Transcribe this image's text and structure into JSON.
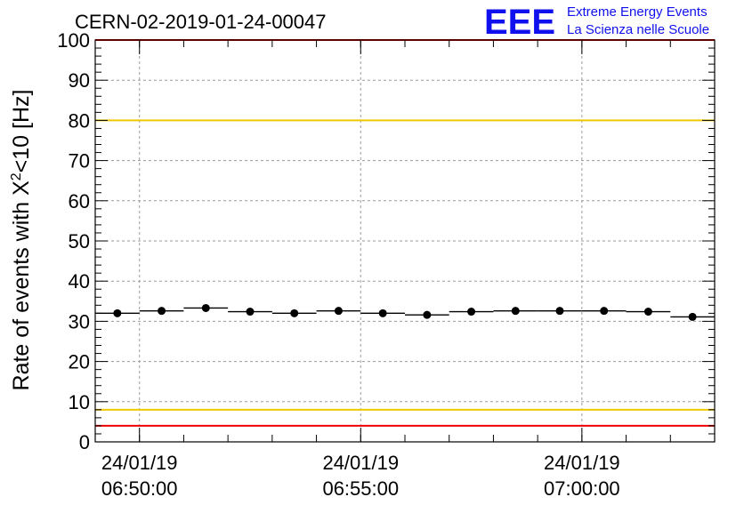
{
  "header": {
    "run_title": "CERN-02-2019-01-24-00047",
    "logo_text": "EEE",
    "logo_line1": "Extreme Energy Events",
    "logo_line2": "La Scienza nelle Scuole"
  },
  "colors": {
    "logo_blue": "#1010ee",
    "red_line": "#ee0000",
    "yellow_line": "#f0c800",
    "marker": "#000000",
    "grid": "#9a9a9a"
  },
  "chart_data": {
    "type": "scatter",
    "title": "CERN-02-2019-01-24-00047",
    "ylabel_prefix": "Rate of events with ",
    "ylabel_symbol": "X",
    "ylabel_sup": "2",
    "ylabel_suffix": "<10 [Hz]",
    "xlabel": "",
    "ylim": [
      0,
      100
    ],
    "xlim": [
      "24/01/19 06:49:00",
      "24/01/19 07:03:00"
    ],
    "yticks": [
      "0",
      "10",
      "20",
      "30",
      "40",
      "50",
      "60",
      "70",
      "80",
      "90",
      "100"
    ],
    "xticks": [
      {
        "date": "24/01/19",
        "time": "06:50:00"
      },
      {
        "date": "24/01/19",
        "time": "06:55:00"
      },
      {
        "date": "24/01/19",
        "time": "07:00:00"
      }
    ],
    "grid": true,
    "bin_width_minutes": 1,
    "points": [
      {
        "x": "06:49:30",
        "y": 32.0
      },
      {
        "x": "06:50:30",
        "y": 32.6
      },
      {
        "x": "06:51:30",
        "y": 33.3
      },
      {
        "x": "06:52:30",
        "y": 32.4
      },
      {
        "x": "06:53:30",
        "y": 32.0
      },
      {
        "x": "06:54:30",
        "y": 32.6
      },
      {
        "x": "06:55:30",
        "y": 32.0
      },
      {
        "x": "06:56:30",
        "y": 31.6
      },
      {
        "x": "06:57:30",
        "y": 32.4
      },
      {
        "x": "06:58:30",
        "y": 32.6
      },
      {
        "x": "06:59:30",
        "y": 32.6
      },
      {
        "x": "07:00:30",
        "y": 32.6
      },
      {
        "x": "07:01:30",
        "y": 32.4
      },
      {
        "x": "07:02:30",
        "y": 31.1
      }
    ],
    "reference_lines": [
      {
        "y": 100,
        "color": "#ee0000"
      },
      {
        "y": 80,
        "color": "#f0c800"
      },
      {
        "y": 8,
        "color": "#f0c800"
      },
      {
        "y": 4,
        "color": "#ee0000"
      }
    ]
  }
}
